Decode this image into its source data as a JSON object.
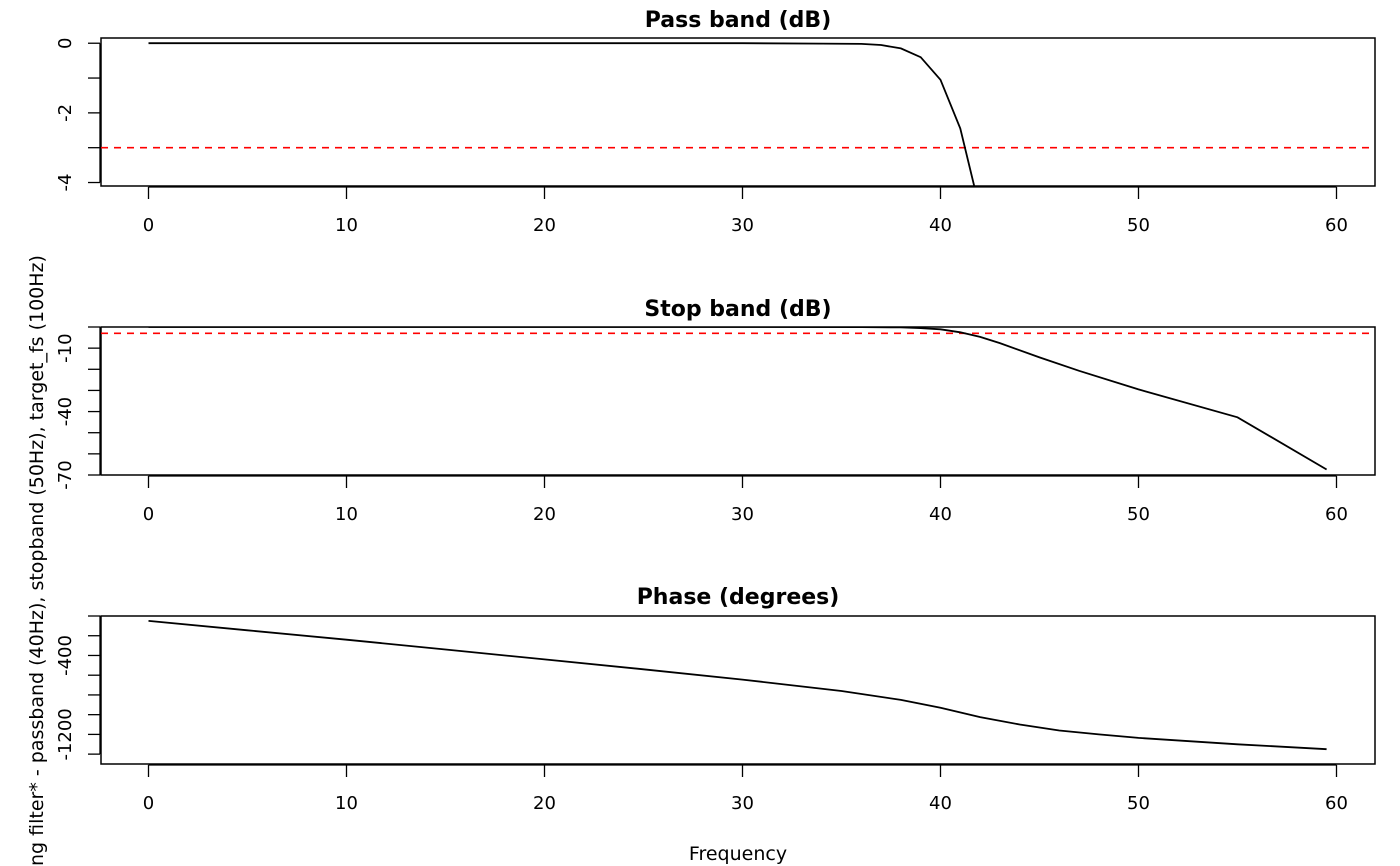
{
  "figure": {
    "ylabel": "ng filter* - passband (40Hz), stopband (50Hz), target_fs (100Hz)",
    "xlabel": "Frequency"
  },
  "chart_data": [
    {
      "type": "line",
      "title": "Pass band (dB)",
      "xlim": [
        0,
        60
      ],
      "ylim": [
        -4.1,
        0.15
      ],
      "xticks": [
        0,
        10,
        20,
        30,
        40,
        50,
        60
      ],
      "yticks": [
        0,
        -1,
        -2,
        -3,
        -4
      ],
      "ytick_labels": [
        "0",
        "",
        "-2",
        "",
        "-4"
      ],
      "reference_line": {
        "y": -3,
        "color": "#ff0000",
        "style": "dashed"
      },
      "series": [
        {
          "color": "#000000",
          "x": [
            0,
            5,
            10,
            15,
            20,
            25,
            30,
            34,
            36,
            37,
            38,
            39,
            40,
            41,
            41.7
          ],
          "y": [
            0,
            0,
            0,
            0,
            0,
            0,
            0,
            -0.01,
            -0.02,
            -0.05,
            -0.15,
            -0.4,
            -1.05,
            -2.45,
            -4.1
          ]
        }
      ]
    },
    {
      "type": "line",
      "title": "Stop band (dB)",
      "xlim": [
        0,
        60
      ],
      "ylim": [
        -70,
        0
      ],
      "xticks": [
        0,
        10,
        20,
        30,
        40,
        50,
        60
      ],
      "yticks": [
        0,
        -10,
        -20,
        -30,
        -40,
        -50,
        -60,
        -70
      ],
      "ytick_labels": [
        "",
        "-10",
        "",
        "",
        "-40",
        "",
        "",
        "-70"
      ],
      "reference_line": {
        "y": -3,
        "color": "#ff0000",
        "style": "dashed"
      },
      "series": [
        {
          "color": "#000000",
          "x": [
            0,
            10,
            20,
            30,
            36,
            38,
            39,
            40,
            41,
            42,
            43,
            45,
            47,
            50,
            55,
            59.5
          ],
          "y": [
            0,
            0,
            0,
            0,
            -0.05,
            -0.2,
            -0.5,
            -1.1,
            -2.5,
            -4.7,
            -7.6,
            -14.4,
            -20.7,
            -29.5,
            -42.7,
            -67.4
          ]
        }
      ]
    },
    {
      "type": "line",
      "title": "Phase (degrees)",
      "xlim": [
        0,
        60
      ],
      "ylim": [
        -1500,
        0
      ],
      "xticks": [
        0,
        10,
        20,
        30,
        40,
        50,
        60
      ],
      "yticks": [
        0,
        -200,
        -400,
        -600,
        -800,
        -1000,
        -1200,
        -1400
      ],
      "ytick_labels": [
        "",
        "",
        "-400",
        "",
        "",
        "",
        "-1200",
        ""
      ],
      "series": [
        {
          "color": "#000000",
          "x": [
            0,
            5,
            10,
            15,
            20,
            25,
            30,
            35,
            38,
            40,
            42,
            44,
            46,
            48,
            50,
            55,
            59.5
          ],
          "y": [
            -50,
            -145,
            -240,
            -340,
            -440,
            -540,
            -645,
            -760,
            -850,
            -930,
            -1025,
            -1100,
            -1160,
            -1200,
            -1235,
            -1300,
            -1350
          ]
        }
      ]
    }
  ]
}
